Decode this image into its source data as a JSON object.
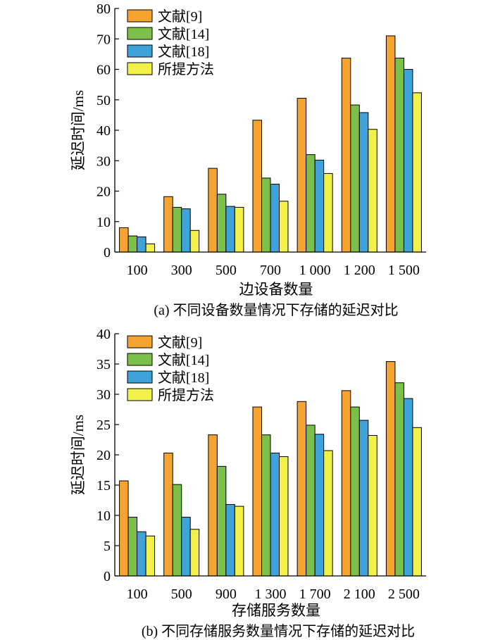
{
  "colors": {
    "series": [
      "#F5A432",
      "#7CBF4A",
      "#3FA3D9",
      "#F2F04A"
    ],
    "stroke": "#000000"
  },
  "chart_data": [
    {
      "type": "bar",
      "title": "",
      "caption": "(a)  不同设备数量情况下存储的延迟对比",
      "xlabel": "边设备数量",
      "ylabel": "延迟时间/ms",
      "ylim": [
        0,
        80
      ],
      "yticks": [
        0,
        10,
        20,
        30,
        40,
        50,
        60,
        70,
        80
      ],
      "categories": [
        "100",
        "300",
        "500",
        "700",
        "1 000",
        "1 200",
        "1 500"
      ],
      "legend_position": "top-left",
      "series": [
        {
          "name": "文献[9]",
          "values": [
            8,
            18.2,
            27.5,
            43.3,
            50.5,
            63.7,
            71
          ]
        },
        {
          "name": "文献[14]",
          "values": [
            5.3,
            14.7,
            19,
            24.3,
            32,
            48.3,
            63.7
          ]
        },
        {
          "name": "文献[18]",
          "values": [
            5,
            14.2,
            15,
            22.3,
            30.2,
            45.8,
            60
          ]
        },
        {
          "name": "所提方法",
          "values": [
            2.7,
            7.1,
            14.7,
            16.7,
            25.8,
            40.3,
            52.3
          ]
        }
      ]
    },
    {
      "type": "bar",
      "title": "",
      "caption": "(b)  不同存储服务数量情况下存储的延迟对比",
      "xlabel": "存储服务数量",
      "ylabel": "延迟时间/ms",
      "ylim": [
        0,
        40
      ],
      "yticks": [
        0,
        5,
        10,
        15,
        20,
        25,
        30,
        35,
        40
      ],
      "categories": [
        "100",
        "500",
        "900",
        "1 300",
        "1 700",
        "2 100",
        "2 500"
      ],
      "legend_position": "top-left",
      "series": [
        {
          "name": "文献[9]",
          "values": [
            15.7,
            20.3,
            23.3,
            27.9,
            28.8,
            30.6,
            35.4
          ]
        },
        {
          "name": "文献[14]",
          "values": [
            9.7,
            15.1,
            18.1,
            23.3,
            24.9,
            27.9,
            31.9
          ]
        },
        {
          "name": "文献[18]",
          "values": [
            7.3,
            9.7,
            11.8,
            20.3,
            23.4,
            25.7,
            29.3
          ]
        },
        {
          "name": "所提方法",
          "values": [
            6.6,
            7.7,
            11.5,
            19.7,
            20.7,
            23.2,
            24.5
          ]
        }
      ]
    }
  ]
}
